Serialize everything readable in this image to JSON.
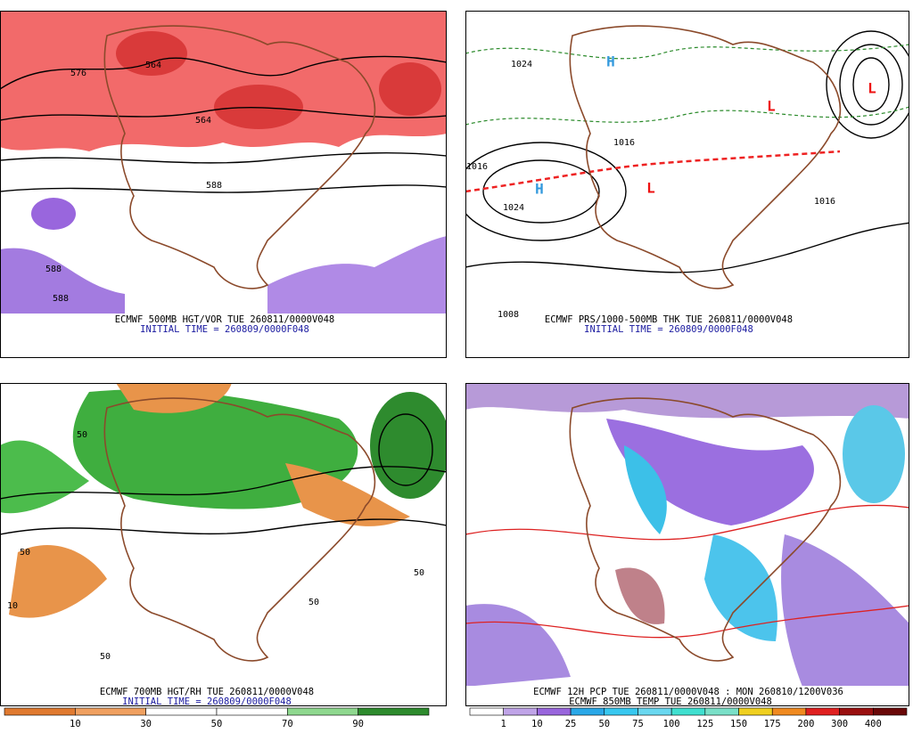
{
  "panels": [
    {
      "caption": "ECMWF 500MB HGT/VOR TUE 260811/0000V048",
      "initial_time": "INITIAL TIME = 260809/0000F048",
      "labels": [
        "576",
        "564",
        "564",
        "588",
        "588",
        "588"
      ]
    },
    {
      "caption": "ECMWF PRS/1000-500MB THK TUE 260811/0000V048",
      "initial_time": "INITIAL TIME = 260809/0000F048",
      "labels": [
        "1024",
        "1016",
        "1016",
        "1024",
        "1016",
        "1008",
        "H",
        "H",
        "L",
        "L",
        "L"
      ]
    },
    {
      "caption": "ECMWF 700MB HGT/RH TUE 260811/0000V048",
      "initial_time": "INITIAL TIME = 260809/0000F048",
      "labels": [
        "50",
        "50",
        "10",
        "50",
        "50",
        "50"
      ],
      "colorbar": [
        10,
        30,
        50,
        70,
        90
      ]
    },
    {
      "caption": "ECMWF 12H PCP TUE 260811/0000V048 : MON 260810/1200V036",
      "subcaption": "ECMWF 850MB TEMP TUE 260811/0000V048",
      "colorbar": [
        1,
        10,
        25,
        50,
        75,
        100,
        125,
        150,
        175,
        200,
        300,
        400
      ]
    }
  ]
}
